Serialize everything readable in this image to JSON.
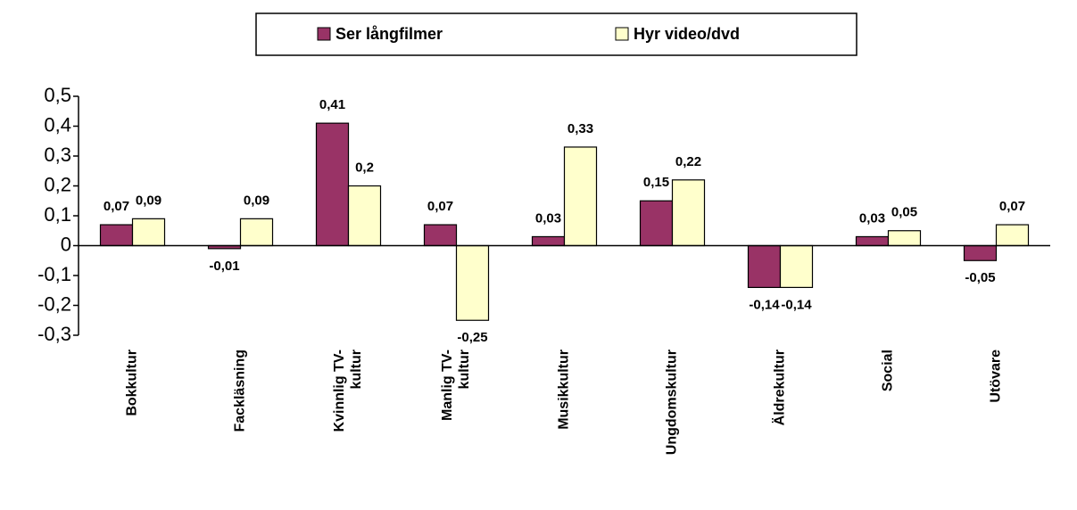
{
  "chart_data": {
    "type": "bar",
    "categories": [
      "Bokkultur",
      "Fackläsning",
      "Kvinnlig TV-\nkultur",
      "Manlig TV-\nkultur",
      "Musikkultur",
      "Ungdomskultur",
      "Äldrekultur",
      "Social",
      "Utövare"
    ],
    "series": [
      {
        "name": "Ser långfilmer",
        "color": "#993366",
        "values": [
          0.07,
          -0.01,
          0.41,
          0.07,
          0.03,
          0.15,
          -0.14,
          0.03,
          -0.05
        ],
        "value_labels": [
          "0,07",
          "-0,01",
          "0,41",
          "0,07",
          "0,03",
          "0,15",
          "-0,14",
          "0,03",
          "-0,05"
        ]
      },
      {
        "name": "Hyr video/dvd",
        "color": "#ffffcc",
        "values": [
          0.09,
          0.09,
          0.2,
          -0.25,
          0.33,
          0.22,
          -0.14,
          0.05,
          0.07
        ],
        "value_labels": [
          "0,09",
          "0,09",
          "0,2",
          "-0,25",
          "0,33",
          "0,22",
          "-0,14",
          "0,05",
          "0,07"
        ]
      }
    ],
    "ylim": [
      -0.3,
      0.5
    ],
    "yticks": [
      {
        "value": -0.3,
        "label": "-0,3"
      },
      {
        "value": -0.2,
        "label": "-0,2"
      },
      {
        "value": -0.1,
        "label": "-0,1"
      },
      0,
      {
        "value": 0.1,
        "label": "0,1"
      },
      {
        "value": 0.2,
        "label": "0,2"
      },
      {
        "value": 0.3,
        "label": "0,3"
      },
      {
        "value": 0.4,
        "label": "0,4"
      },
      {
        "value": 0.5,
        "label": "0,5"
      }
    ],
    "legend": "top"
  }
}
